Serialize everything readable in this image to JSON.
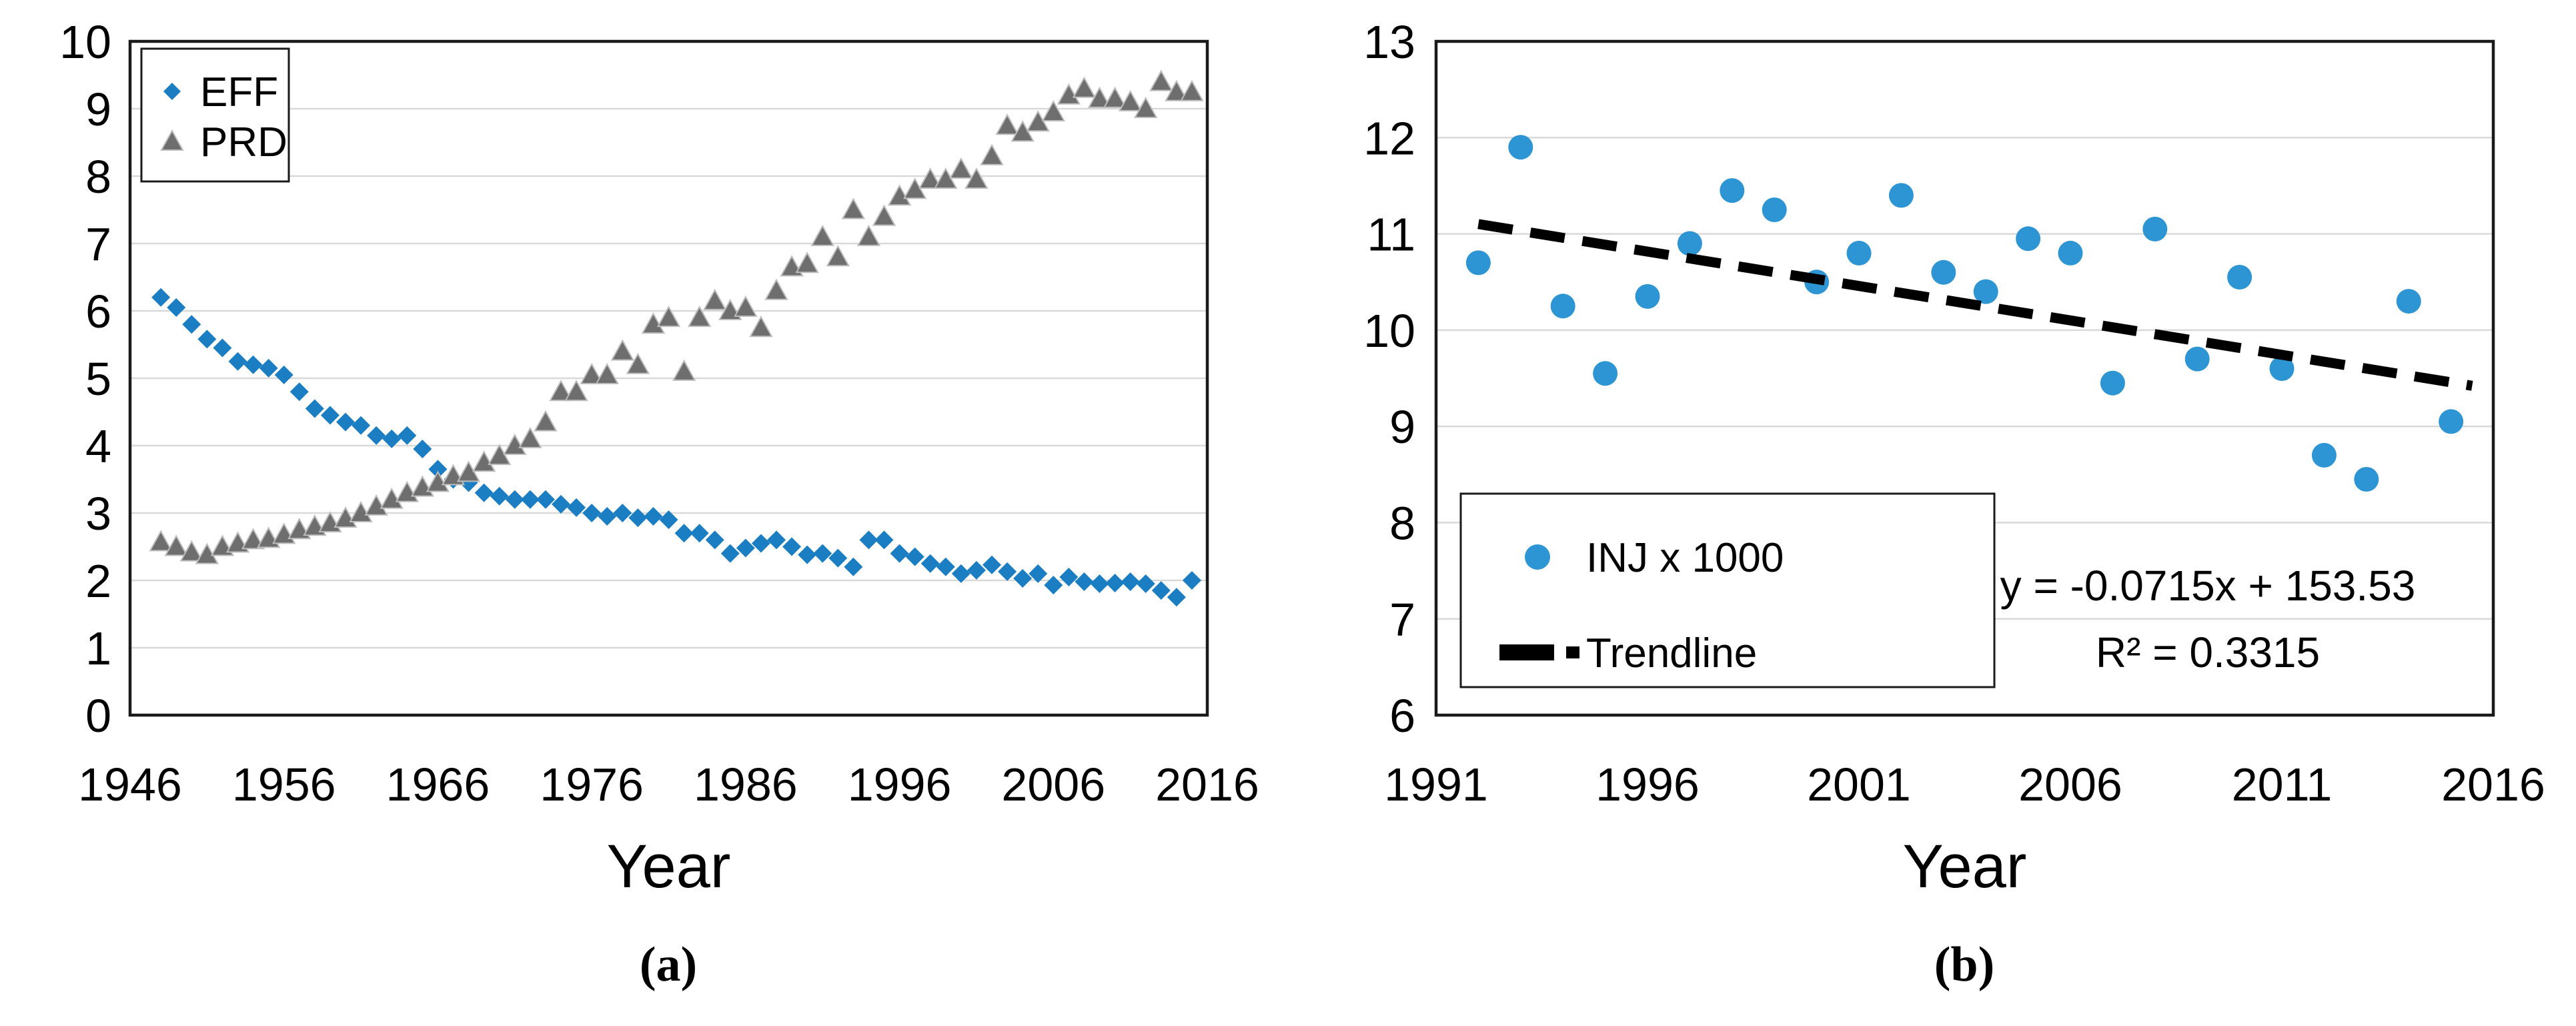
{
  "figure": {
    "caption_a": "(a)",
    "caption_b": "(b)"
  },
  "chart_data": [
    {
      "type": "scatter",
      "panel": "a",
      "title": "",
      "xlabel": "Year",
      "ylabel": "",
      "xlim": [
        1946,
        2016
      ],
      "ylim": [
        0,
        10
      ],
      "x_ticks": [
        1946,
        1956,
        1966,
        1976,
        1986,
        1996,
        2006,
        2016
      ],
      "y_ticks": [
        0,
        1,
        2,
        3,
        4,
        5,
        6,
        7,
        8,
        9,
        10
      ],
      "grid": "horizontal",
      "legend": {
        "position": "top-left",
        "items": [
          {
            "label": "EFF",
            "marker": "diamond",
            "color": "#1B7EC3"
          },
          {
            "label": "PRD",
            "marker": "triangle",
            "color": "#6E6E6E"
          }
        ]
      },
      "years": [
        1948,
        1949,
        1950,
        1951,
        1952,
        1953,
        1954,
        1955,
        1956,
        1957,
        1958,
        1959,
        1960,
        1961,
        1962,
        1963,
        1964,
        1965,
        1966,
        1967,
        1968,
        1969,
        1970,
        1971,
        1972,
        1973,
        1974,
        1975,
        1976,
        1977,
        1978,
        1979,
        1980,
        1981,
        1982,
        1983,
        1984,
        1985,
        1986,
        1987,
        1988,
        1989,
        1990,
        1991,
        1992,
        1993,
        1994,
        1995,
        1996,
        1997,
        1998,
        1999,
        2000,
        2001,
        2002,
        2003,
        2004,
        2005,
        2006,
        2007,
        2008,
        2009,
        2010,
        2011,
        2012,
        2013,
        2014,
        2015
      ],
      "series": [
        {
          "name": "EFF",
          "marker": "diamond",
          "color": "#1B7EC3",
          "values": [
            6.2,
            6.05,
            5.8,
            5.58,
            5.45,
            5.25,
            5.2,
            5.15,
            5.05,
            4.8,
            4.55,
            4.45,
            4.35,
            4.3,
            4.15,
            4.1,
            4.15,
            3.95,
            3.65,
            3.5,
            3.45,
            3.3,
            3.25,
            3.2,
            3.2,
            3.2,
            3.13,
            3.08,
            3.0,
            2.95,
            3.0,
            2.93,
            2.95,
            2.9,
            2.7,
            2.7,
            2.6,
            2.4,
            2.48,
            2.55,
            2.6,
            2.5,
            2.38,
            2.4,
            2.33,
            2.2,
            2.6,
            2.6,
            2.4,
            2.35,
            2.25,
            2.2,
            2.1,
            2.15,
            2.23,
            2.13,
            2.03,
            2.1,
            1.93,
            2.05,
            1.98,
            1.95,
            1.96,
            1.98,
            1.95,
            1.85,
            1.75,
            2.0
          ]
        },
        {
          "name": "PRD",
          "marker": "triangle",
          "color": "#6E6E6E",
          "values": [
            2.57,
            2.5,
            2.42,
            2.38,
            2.5,
            2.55,
            2.6,
            2.62,
            2.68,
            2.75,
            2.8,
            2.85,
            2.92,
            3.0,
            3.1,
            3.2,
            3.3,
            3.38,
            3.45,
            3.55,
            3.6,
            3.75,
            3.85,
            4.0,
            4.1,
            4.35,
            4.8,
            4.8,
            5.05,
            5.05,
            5.4,
            5.2,
            5.8,
            5.9,
            5.1,
            5.9,
            6.15,
            6.0,
            6.05,
            5.75,
            6.3,
            6.65,
            6.7,
            7.1,
            6.8,
            7.5,
            7.1,
            7.4,
            7.7,
            7.8,
            7.95,
            7.95,
            8.1,
            7.95,
            8.3,
            8.75,
            8.65,
            8.8,
            8.95,
            9.2,
            9.3,
            9.15,
            9.15,
            9.1,
            9.0,
            9.4,
            9.25,
            9.25
          ]
        }
      ]
    },
    {
      "type": "scatter",
      "panel": "b",
      "title": "",
      "xlabel": "Year",
      "ylabel": "",
      "xlim": [
        1991,
        2016
      ],
      "ylim": [
        6,
        13
      ],
      "x_ticks": [
        1991,
        1996,
        2001,
        2006,
        2011,
        2016
      ],
      "y_ticks": [
        6,
        7,
        8,
        9,
        10,
        11,
        12,
        13
      ],
      "grid": "horizontal",
      "legend": {
        "position": "bottom-left",
        "items": [
          {
            "label": "INJ x 1000",
            "marker": "circle",
            "color": "#2D95D3"
          },
          {
            "label": "Trendline",
            "marker": "dash",
            "color": "#000000"
          }
        ]
      },
      "years": [
        1992,
        1993,
        1994,
        1995,
        1996,
        1997,
        1998,
        1999,
        2000,
        2001,
        2002,
        2003,
        2004,
        2005,
        2006,
        2007,
        2008,
        2009,
        2010,
        2011,
        2012,
        2013,
        2014,
        2015
      ],
      "series": [
        {
          "name": "INJ x 1000",
          "marker": "circle",
          "color": "#2D95D3",
          "values": [
            10.7,
            11.9,
            10.25,
            9.55,
            10.35,
            10.9,
            11.45,
            11.25,
            10.5,
            10.8,
            11.4,
            10.6,
            10.4,
            10.95,
            10.8,
            9.45,
            11.05,
            9.7,
            10.55,
            9.6,
            8.7,
            8.45,
            10.3,
            9.05
          ]
        }
      ],
      "trendline": {
        "name": "Trendline",
        "color": "#000000",
        "style": "dashed",
        "slope": -0.0715,
        "intercept": 153.53,
        "x_start": 1992,
        "x_end": 2015.5
      },
      "annotation_lines": [
        "y = -0.0715x + 153.53",
        "R² = 0.3315"
      ]
    }
  ],
  "colors": {
    "eff_blue": "#1B7EC3",
    "inj_blue": "#2D95D3",
    "prd_gray": "#6E6E6E",
    "gridline": "#D9D9D9",
    "axis_border": "#1A1A1A",
    "background": "#FFFFFF"
  }
}
